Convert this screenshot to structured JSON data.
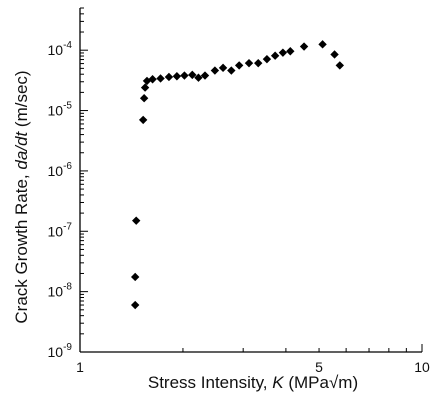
{
  "chart_data": {
    "type": "scatter",
    "xscale": "log",
    "yscale": "log",
    "xlim": [
      1,
      10
    ],
    "ylim": [
      1e-09,
      0.0005
    ],
    "xlabel": {
      "prefix": "Stress Intensity, ",
      "var": "K",
      "units": "(MPa√m)"
    },
    "ylabel": {
      "prefix": "Crack Growth Rate, ",
      "var": "da/dt",
      "units": "(m/sec)"
    },
    "xticks": [
      {
        "value": 1,
        "label": "1"
      },
      {
        "value": 5,
        "label": "5"
      },
      {
        "value": 10,
        "label": "10"
      }
    ],
    "yticks": [
      {
        "value": 1e-09,
        "base": "10",
        "exp": "-9"
      },
      {
        "value": 1e-08,
        "base": "10",
        "exp": "-8"
      },
      {
        "value": 1e-07,
        "base": "10",
        "exp": "-7"
      },
      {
        "value": 1e-06,
        "base": "10",
        "exp": "-6"
      },
      {
        "value": 1e-05,
        "base": "10",
        "exp": "-5"
      },
      {
        "value": 0.0001,
        "base": "10",
        "exp": "-4"
      }
    ],
    "marker": "diamond",
    "marker_color": "#000000",
    "points": [
      {
        "x": 1.45,
        "y": 6e-09
      },
      {
        "x": 1.45,
        "y": 1.75e-08
      },
      {
        "x": 1.46,
        "y": 1.5e-07
      },
      {
        "x": 1.53,
        "y": 7e-06
      },
      {
        "x": 1.54,
        "y": 1.6e-05
      },
      {
        "x": 1.55,
        "y": 2.4e-05
      },
      {
        "x": 1.57,
        "y": 3.1e-05
      },
      {
        "x": 1.63,
        "y": 3.3e-05
      },
      {
        "x": 1.72,
        "y": 3.4e-05
      },
      {
        "x": 1.82,
        "y": 3.6e-05
      },
      {
        "x": 1.92,
        "y": 3.7e-05
      },
      {
        "x": 2.02,
        "y": 3.8e-05
      },
      {
        "x": 2.13,
        "y": 3.9e-05
      },
      {
        "x": 2.22,
        "y": 3.5e-05
      },
      {
        "x": 2.32,
        "y": 3.8e-05
      },
      {
        "x": 2.48,
        "y": 4.6e-05
      },
      {
        "x": 2.62,
        "y": 5.1e-05
      },
      {
        "x": 2.77,
        "y": 4.6e-05
      },
      {
        "x": 2.92,
        "y": 5.6e-05
      },
      {
        "x": 3.12,
        "y": 6.1e-05
      },
      {
        "x": 3.32,
        "y": 6.1e-05
      },
      {
        "x": 3.52,
        "y": 7.1e-05
      },
      {
        "x": 3.72,
        "y": 8.1e-05
      },
      {
        "x": 3.92,
        "y": 9.1e-05
      },
      {
        "x": 4.12,
        "y": 9.6e-05
      },
      {
        "x": 4.52,
        "y": 0.000115
      },
      {
        "x": 5.12,
        "y": 0.000125
      },
      {
        "x": 5.55,
        "y": 8.5e-05
      },
      {
        "x": 5.75,
        "y": 5.6e-05
      }
    ]
  }
}
